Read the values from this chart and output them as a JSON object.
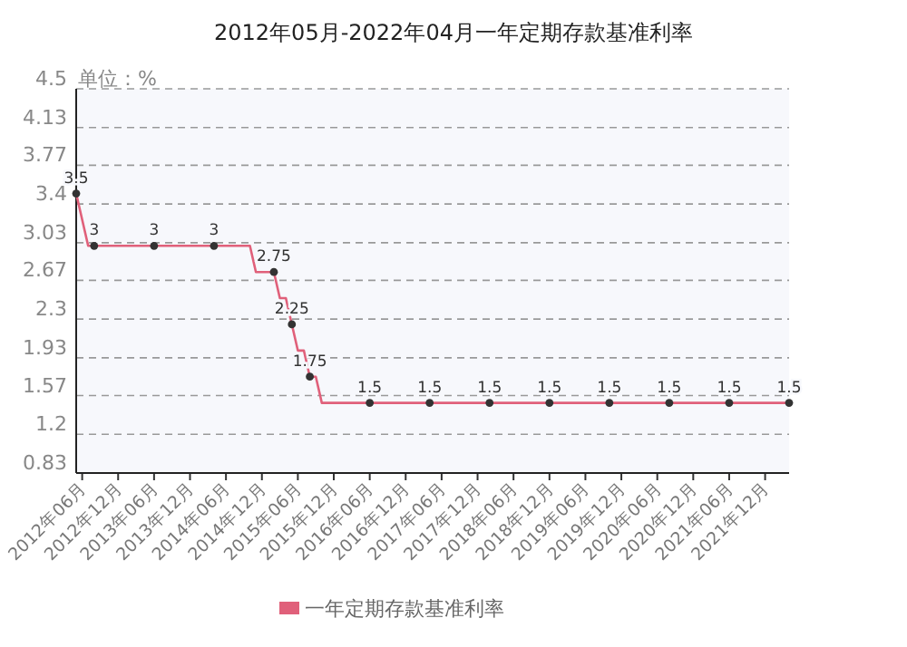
{
  "chart_data": {
    "type": "line",
    "title": "2012年05月-2022年04月一年定期存款基准利率",
    "ylabel": "单位：%",
    "series": [
      {
        "name": "一年定期存款基准利率",
        "color": "#e0607a",
        "marker": "none",
        "x": [
          "2012-05",
          "2012-07",
          "2014-10",
          "2014-11",
          "2015-02",
          "2015-03",
          "2015-04",
          "2015-05",
          "2015-06",
          "2015-07",
          "2015-08",
          "2015-09",
          "2015-10",
          "2022-04"
        ],
        "values": [
          3.5,
          3,
          3,
          2.75,
          2.75,
          2.5,
          2.5,
          2.25,
          2,
          2,
          1.75,
          1.75,
          1.5,
          1.5
        ]
      },
      {
        "type": "scatter",
        "color": "#333333",
        "marker": "circle",
        "data_labels": true,
        "x": [
          "2012-05",
          "2012-08",
          "2013-06",
          "2014-04",
          "2015-02",
          "2015-05",
          "2015-08",
          "2016-06",
          "2017-04",
          "2018-02",
          "2018-12",
          "2019-10",
          "2020-08",
          "2021-06",
          "2022-04"
        ],
        "values": [
          3.5,
          3,
          3,
          3,
          2.75,
          2.25,
          1.75,
          1.5,
          1.5,
          1.5,
          1.5,
          1.5,
          1.5,
          1.5,
          1.5
        ]
      }
    ],
    "xlim": [
      "2012-05",
      "2022-04"
    ],
    "xticks": [
      {
        "value": "2012-06",
        "label": "2012年06月"
      },
      {
        "value": "2012-12",
        "label": "2012年12月"
      },
      {
        "value": "2013-06",
        "label": "2013年06月"
      },
      {
        "value": "2013-12",
        "label": "2013年12月"
      },
      {
        "value": "2014-06",
        "label": "2014年06月"
      },
      {
        "value": "2014-12",
        "label": "2014年12月"
      },
      {
        "value": "2015-06",
        "label": "2015年06月"
      },
      {
        "value": "2015-12",
        "label": "2015年12月"
      },
      {
        "value": "2016-06",
        "label": "2016年06月"
      },
      {
        "value": "2016-12",
        "label": "2016年12月"
      },
      {
        "value": "2017-06",
        "label": "2017年06月"
      },
      {
        "value": "2017-12",
        "label": "2017年12月"
      },
      {
        "value": "2018-06",
        "label": "2018年06月"
      },
      {
        "value": "2018-12",
        "label": "2018年12月"
      },
      {
        "value": "2019-06",
        "label": "2019年06月"
      },
      {
        "value": "2019-12",
        "label": "2019年12月"
      },
      {
        "value": "2020-06",
        "label": "2020年06月"
      },
      {
        "value": "2020-12",
        "label": "2020年12月"
      },
      {
        "value": "2021-06",
        "label": "2021年06月"
      },
      {
        "value": "2021-12",
        "label": "2021年12月"
      }
    ],
    "ylim": [
      0.83,
      4.5
    ],
    "yticks": [
      0.83,
      1.2,
      1.57,
      1.93,
      2.3,
      2.67,
      3.03,
      3.4,
      3.77,
      4.13,
      4.5
    ],
    "grid": "y",
    "legend": "bottom"
  }
}
